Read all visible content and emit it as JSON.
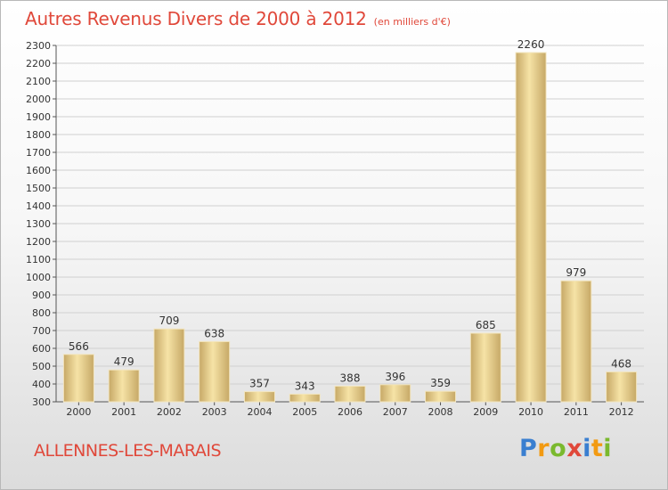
{
  "title": "Autres Revenus Divers de 2000 à 2012",
  "subtitle": "(en milliers d'€)",
  "place": "ALLENNES-LES-MARAIS",
  "logo": {
    "letters": [
      "P",
      "r",
      "o",
      "x",
      "i",
      "t",
      "i"
    ],
    "colors": [
      "#3a7fd0",
      "#f29a12",
      "#7ab92e",
      "#e0483a",
      "#3a7fd0",
      "#f29a12",
      "#7ab92e"
    ]
  },
  "colors": {
    "title": "#e0483a",
    "bar_light": "#f6e3a6",
    "bar_dark": "#c6a866",
    "grid": "#d0d0d0",
    "text": "#333333"
  },
  "chart_data": {
    "type": "bar",
    "categories": [
      "2000",
      "2001",
      "2002",
      "2003",
      "2004",
      "2005",
      "2006",
      "2007",
      "2008",
      "2009",
      "2010",
      "2011",
      "2012"
    ],
    "values": [
      566,
      479,
      709,
      638,
      357,
      343,
      388,
      396,
      359,
      685,
      2260,
      979,
      468
    ],
    "data_labels": [
      "566",
      "479",
      "709",
      "638",
      "357",
      "343",
      "388",
      "396",
      "359",
      "685",
      "2260",
      "979",
      "468"
    ],
    "ylim": [
      300,
      2300
    ],
    "yticks": [
      300,
      400,
      500,
      600,
      700,
      800,
      900,
      1000,
      1100,
      1200,
      1300,
      1400,
      1500,
      1600,
      1700,
      1800,
      1900,
      2000,
      2100,
      2200,
      2300
    ],
    "grid": true
  }
}
